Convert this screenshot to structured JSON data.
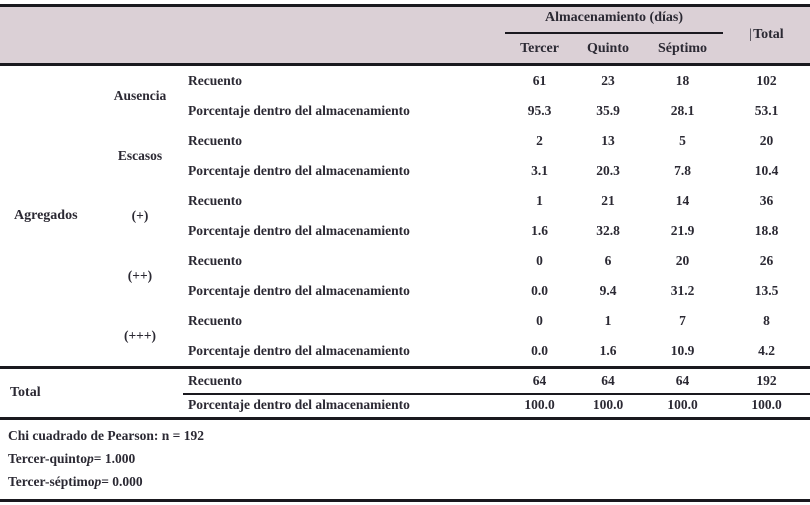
{
  "table": {
    "header": {
      "almacenamiento_label": "Almacenamiento (días)",
      "col_tercer": "Tercer",
      "col_quinto": "Quinto",
      "col_septimo": "Séptimo",
      "total_pipe": "|",
      "col_total": "Total"
    },
    "row_labels": {
      "agregados": "Agregados",
      "total": "Total",
      "recuento": "Recuento",
      "porcentaje": "Porcentaje dentro del almacenamiento"
    },
    "groups": [
      {
        "label": "Ausencia",
        "recuento": [
          "61",
          "23",
          "18",
          "102"
        ],
        "porcentaje": [
          "95.3",
          "35.9",
          "28.1",
          "53.1"
        ]
      },
      {
        "label": "Escasos",
        "recuento": [
          "2",
          "13",
          "5",
          "20"
        ],
        "porcentaje": [
          "3.1",
          "20.3",
          "7.8",
          "10.4"
        ]
      },
      {
        "label": "(+)",
        "recuento": [
          "1",
          "21",
          "14",
          "36"
        ],
        "porcentaje": [
          "1.6",
          "32.8",
          "21.9",
          "18.8"
        ]
      },
      {
        "label": "(++)",
        "recuento": [
          "0",
          "6",
          "20",
          "26"
        ],
        "porcentaje": [
          "0.0",
          "9.4",
          "31.2",
          "13.5"
        ]
      },
      {
        "label": "(+++)",
        "recuento": [
          "0",
          "1",
          "7",
          "8"
        ],
        "porcentaje": [
          "0.0",
          "1.6",
          "10.9",
          "4.2"
        ]
      }
    ],
    "total_row": {
      "recuento": [
        "64",
        "64",
        "64",
        "192"
      ],
      "porcentaje": [
        "100.0",
        "100.0",
        "100.0",
        "100.0"
      ]
    }
  },
  "footer": {
    "line1": "Chi cuadrado de Pearson: n = 192",
    "line2_prefix": "Tercer-quinto ",
    "line2_p": "p",
    "line2_value": " = 1.000",
    "line3_prefix": "Tercer-séptimo ",
    "line3_p": "p",
    "line3_value": " = 0.000"
  },
  "colors": {
    "header_bg": "#dbd0d6",
    "text": "#2b2933",
    "rule": "#1a191f"
  }
}
